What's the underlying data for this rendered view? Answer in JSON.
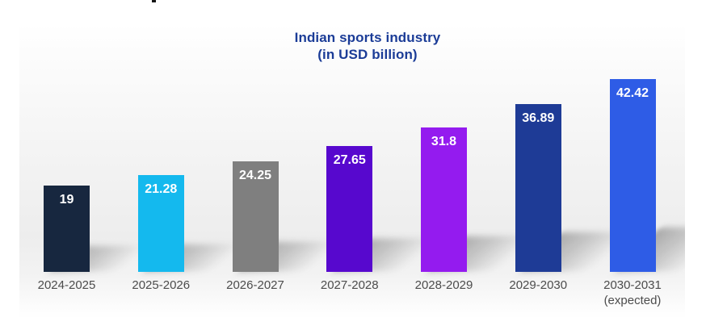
{
  "chart_data": {
    "type": "bar",
    "title": "Indian sports industry",
    "subtitle": "(in USD billion)",
    "categories": [
      "2024-2025",
      "2025-2026",
      "2026-2027",
      "2027-2028",
      "2028-2029",
      "2029-2030",
      "2030-2031\n(expected)"
    ],
    "values": [
      19,
      21.28,
      24.25,
      27.65,
      31.8,
      36.89,
      42.42
    ],
    "value_labels": [
      "19",
      "21.28",
      "24.25",
      "27.65",
      "31.8",
      "36.89",
      "42.42"
    ],
    "bar_colors": [
      "#17273f",
      "#14b9ee",
      "#7f7f7f",
      "#5708ce",
      "#941bef",
      "#1e3b96",
      "#2e5ce6"
    ],
    "value_label_color": "#ffffff",
    "category_label_color": "#4c4c4c",
    "title_color": "#1b3c97",
    "xlabel": "",
    "ylabel": "",
    "ylim": [
      0,
      45
    ],
    "grid": false,
    "legend": false
  }
}
